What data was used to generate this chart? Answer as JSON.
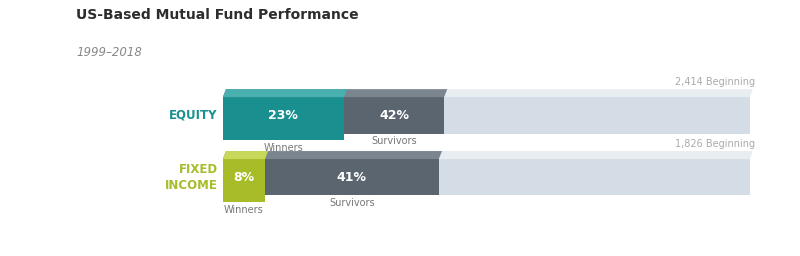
{
  "title": "US-Based Mutual Fund Performance",
  "subtitle": "1999–2018",
  "rows": [
    {
      "label": "EQUITY",
      "label_color": "#1a9090",
      "winners_pct": 23,
      "survivors_pct": 42,
      "beginning": 2414,
      "winners_color": "#1a8f8f",
      "winners_top_color": "#4aafaf",
      "survivors_color": "#5a6570",
      "survivors_top_color": "#7a8590",
      "background_color": "#d4dce6",
      "background_top_color": "#e8edf2"
    },
    {
      "label": "FIXED\nINCOME",
      "label_color": "#a8bc2a",
      "winners_pct": 8,
      "survivors_pct": 41,
      "beginning": 1826,
      "winners_color": "#a8bc2a",
      "winners_top_color": "#c8d85a",
      "survivors_color": "#5a6570",
      "survivors_top_color": "#7a8590",
      "background_color": "#d4dce6",
      "background_top_color": "#e8edf2"
    }
  ],
  "total_pct": 100,
  "annotation_color": "#aaaaaa",
  "text_color": "#777777",
  "background": "#ffffff",
  "title_fontsize": 10,
  "subtitle_fontsize": 8.5,
  "label_fontsize": 8.5,
  "pct_fontsize": 9,
  "sub_label_fontsize": 7
}
